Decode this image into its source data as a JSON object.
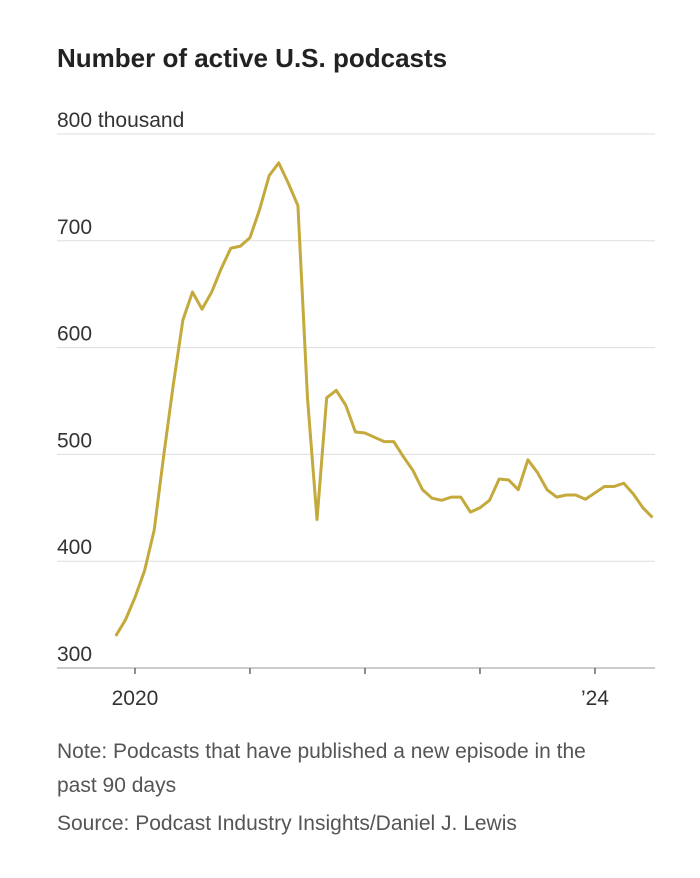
{
  "chart_data": {
    "type": "line",
    "title": "Number of active U.S. podcasts",
    "note": "Note: Podcasts that have published a new episode in the past 90 days",
    "source": "Source: Podcast Industry Insights/Daniel J. Lewis",
    "x": [
      2019.833,
      2019.917,
      2020,
      2020.083,
      2020.167,
      2020.25,
      2020.333,
      2020.417,
      2020.5,
      2020.583,
      2020.667,
      2020.75,
      2020.833,
      2020.917,
      2021,
      2021.083,
      2021.167,
      2021.25,
      2021.333,
      2021.417,
      2021.5,
      2021.583,
      2021.667,
      2021.75,
      2021.833,
      2021.917,
      2022,
      2022.083,
      2022.167,
      2022.25,
      2022.333,
      2022.417,
      2022.5,
      2022.583,
      2022.667,
      2022.75,
      2022.833,
      2022.917,
      2023,
      2023.083,
      2023.167,
      2023.25,
      2023.333,
      2023.417,
      2023.5,
      2023.583,
      2023.667,
      2023.75,
      2023.833,
      2023.917,
      2024,
      2024.083,
      2024.167,
      2024.25,
      2024.333,
      2024.417,
      2024.5
    ],
    "series": [
      {
        "name": "Active podcasts",
        "color": "#c4a93c",
        "values": [
          330,
          345,
          366,
          391,
          429,
          499,
          565,
          626,
          652,
          636,
          652,
          674,
          693,
          695,
          703,
          729,
          761,
          773,
          754,
          733,
          553,
          439,
          553,
          560,
          546,
          521,
          520,
          516,
          512,
          512,
          498,
          485,
          467,
          459,
          457,
          460,
          460,
          446,
          450,
          457,
          477,
          476,
          467,
          495,
          483,
          467,
          460,
          462,
          462,
          458,
          464,
          470,
          470,
          473,
          463,
          450,
          441
        ]
      }
    ],
    "xlim": [
      2019.322,
      2024.522
    ],
    "xticks": [
      2020,
      {
        "value": 2021,
        "label": null
      },
      {
        "value": 2022,
        "label": null
      },
      {
        "value": 2023,
        "label": null
      },
      {
        "value": 2024,
        "label": "’24"
      }
    ],
    "ylim": [
      300,
      800
    ],
    "yticks": [
      300,
      400,
      500,
      600,
      700,
      {
        "value": 800,
        "label": "800 thousand"
      }
    ],
    "grid": true
  }
}
